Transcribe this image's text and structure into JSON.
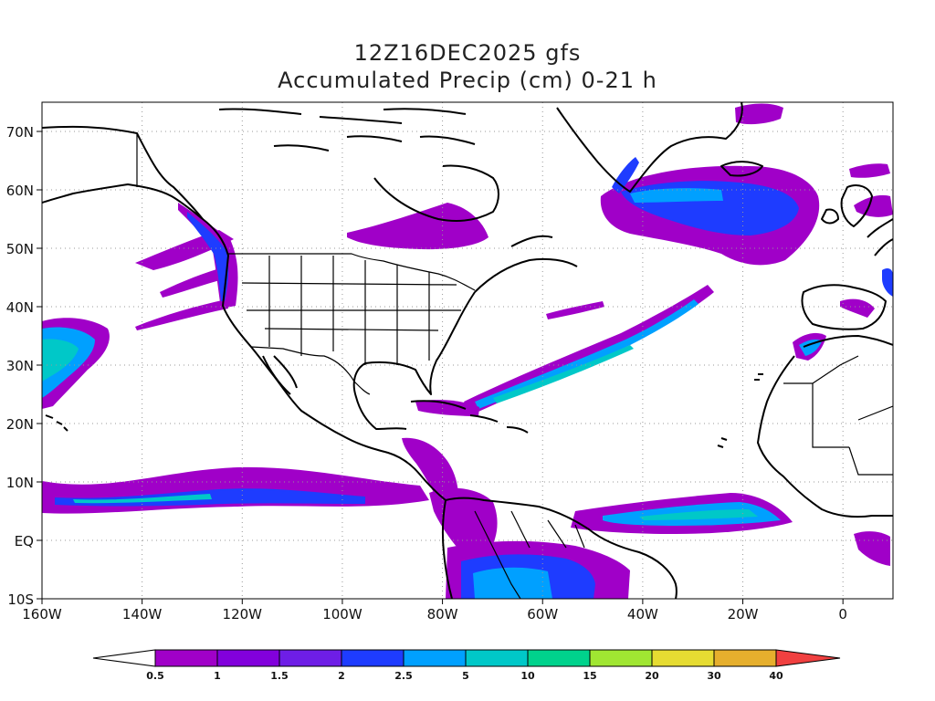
{
  "title": {
    "line1": "12Z16DEC2025 gfs",
    "line2": "Accumulated Precip (cm) 0-21 h"
  },
  "map": {
    "type": "precipitation-map",
    "projection": "cylindrical lat-lon",
    "lon_range": [
      -160,
      10
    ],
    "lat_range": [
      -10,
      75
    ],
    "grid": "dotted",
    "lon_ticks": [
      {
        "value": -160,
        "label": "160W"
      },
      {
        "value": -140,
        "label": "140W"
      },
      {
        "value": -120,
        "label": "120W"
      },
      {
        "value": -100,
        "label": "100W"
      },
      {
        "value": -80,
        "label": "80W"
      },
      {
        "value": -60,
        "label": "60W"
      },
      {
        "value": -40,
        "label": "40W"
      },
      {
        "value": -20,
        "label": "20W"
      },
      {
        "value": 0,
        "label": "0"
      }
    ],
    "lat_ticks": [
      {
        "value": 70,
        "label": "70N"
      },
      {
        "value": 60,
        "label": "60N"
      },
      {
        "value": 50,
        "label": "50N"
      },
      {
        "value": 40,
        "label": "40N"
      },
      {
        "value": 30,
        "label": "30N"
      },
      {
        "value": 20,
        "label": "20N"
      },
      {
        "value": 10,
        "label": "10N"
      },
      {
        "value": 0,
        "label": "EQ"
      },
      {
        "value": -10,
        "label": "10S"
      }
    ]
  },
  "colorbar": {
    "labels": [
      "0.5",
      "1",
      "1.5",
      "2",
      "2.5",
      "5",
      "10",
      "15",
      "20",
      "30",
      "40"
    ],
    "colors": [
      "#ffffff",
      "#a000c8",
      "#8200dc",
      "#6e1ee6",
      "#1e3cff",
      "#00a0ff",
      "#00c8c8",
      "#00d28c",
      "#a0e632",
      "#e6dc32",
      "#e6af2d",
      "#f08228",
      "#f04040"
    ]
  }
}
